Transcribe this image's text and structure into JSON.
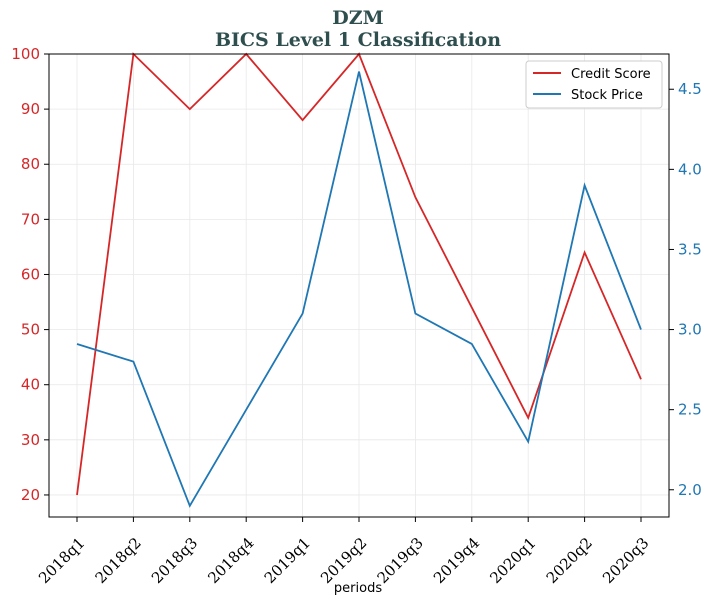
{
  "chart_data": {
    "type": "line",
    "title": "DZM",
    "subtitle": "BICS Level 1 Classification",
    "xlabel": "periods",
    "categories": [
      "2018q1",
      "2018q2",
      "2018q3",
      "2018q4",
      "2019q1",
      "2019q2",
      "2019q3",
      "2019q4",
      "2020q1",
      "2020q2",
      "2020q3"
    ],
    "series": [
      {
        "name": "Credit Score",
        "axis": "left",
        "color": "#d62728",
        "values": [
          20,
          100,
          90,
          100,
          88,
          100,
          74,
          54,
          34,
          64,
          41
        ]
      },
      {
        "name": "Stock Price",
        "axis": "right",
        "color": "#1f77b4",
        "values": [
          2.91,
          2.8,
          1.9,
          2.5,
          3.1,
          4.61,
          3.1,
          2.91,
          2.3,
          3.9,
          3.0
        ]
      }
    ],
    "y_left": {
      "ylim": [
        16,
        100
      ],
      "ticks": [
        20,
        30,
        40,
        50,
        60,
        70,
        80,
        90,
        100
      ],
      "color": "#d62728"
    },
    "y_right": {
      "ylim": [
        1.83,
        4.72
      ],
      "ticks": [
        2.0,
        2.5,
        3.0,
        3.5,
        4.0,
        4.5
      ],
      "tick_labels": [
        "2.0",
        "2.5",
        "3.0",
        "3.5",
        "4.0",
        "4.5"
      ],
      "color": "#1f77b4"
    },
    "grid": true,
    "legend_position": "top-right"
  }
}
